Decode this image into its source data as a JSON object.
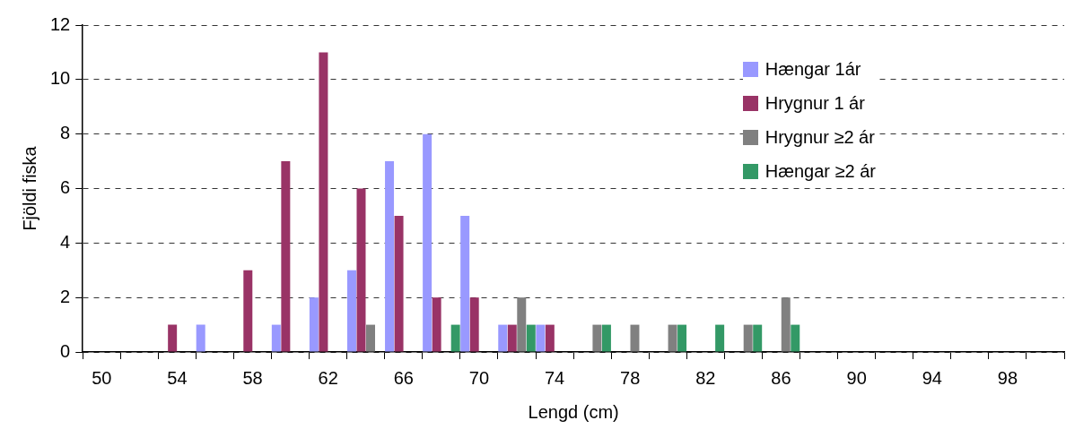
{
  "chart_data": {
    "type": "bar",
    "xlabel": "Lengd (cm)",
    "ylabel": "Fjöldi fiska",
    "categories": [
      "50",
      null,
      "54",
      null,
      "58",
      null,
      "62",
      null,
      "66",
      null,
      "70",
      null,
      "74",
      null,
      "78",
      null,
      "82",
      null,
      "86",
      null,
      "90",
      null,
      "94",
      null,
      "98",
      null
    ],
    "series": [
      {
        "name": "Hængar 1ár",
        "color": "#9999ff",
        "values": [
          0,
          0,
          0,
          1,
          0,
          1,
          2,
          3,
          7,
          8,
          5,
          1,
          1,
          0,
          0,
          0,
          0,
          0,
          0,
          0,
          0,
          0,
          0,
          0,
          0,
          0
        ]
      },
      {
        "name": "Hrygnur 1 ár",
        "color": "#993366",
        "values": [
          0,
          0,
          1,
          0,
          3,
          7,
          11,
          6,
          5,
          2,
          2,
          1,
          1,
          0,
          0,
          0,
          0,
          0,
          0,
          0,
          0,
          0,
          0,
          0,
          0,
          0
        ]
      },
      {
        "name": "Hrygnur ≥2 ár",
        "color": "#808080",
        "values": [
          0,
          0,
          0,
          0,
          0,
          0,
          0,
          1,
          0,
          0,
          0,
          2,
          0,
          1,
          1,
          1,
          0,
          1,
          2,
          0,
          0,
          0,
          0,
          0,
          0,
          0
        ]
      },
      {
        "name": "Hængar ≥2 ár",
        "color": "#339966",
        "values": [
          0,
          0,
          0,
          0,
          0,
          0,
          0,
          0,
          0,
          1,
          0,
          1,
          0,
          1,
          0,
          1,
          1,
          1,
          1,
          0,
          0,
          0,
          0,
          0,
          0,
          0
        ]
      }
    ],
    "ylim": [
      0,
      12
    ],
    "yticks": [
      0,
      2,
      4,
      6,
      8,
      10,
      12
    ],
    "grid": "y",
    "legend": "top right"
  }
}
